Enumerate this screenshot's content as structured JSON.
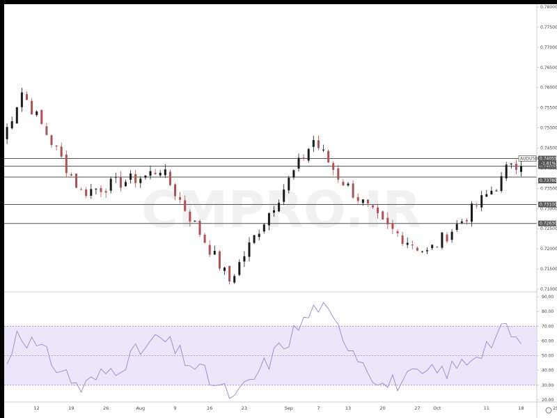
{
  "watermark": "CMPRO.IR",
  "colors": {
    "up": "#1a1a1a",
    "down": "#b05050",
    "level_line": "#555555",
    "rsi_line": "#9b7fd6",
    "rsi_band": "#ede6fa",
    "rsi_band_border": "#8a6cc8",
    "grid": "#e0e0e0"
  },
  "chart_data": [
    {
      "type": "candlestick",
      "symbol_badge": "AUDUSD",
      "last_price_label": "0.74055",
      "change_label": "-1.61%",
      "ylim": [
        0.71,
        0.78
      ],
      "y_ticks": [
        "0.78000",
        "0.77500",
        "0.77000",
        "0.76500",
        "0.76000",
        "0.75500",
        "0.75000",
        "0.74500",
        "0.74000",
        "0.73500",
        "0.73000",
        "0.72500",
        "0.72000",
        "0.71500",
        "0.71000"
      ],
      "x_ticks": [
        "12",
        "19",
        "26",
        "Aug",
        "9",
        "16",
        "23",
        "Sep",
        "7",
        "13",
        "20",
        "27",
        "Oct",
        "11",
        "18",
        "25"
      ],
      "horizontal_levels": [
        {
          "value": 0.7405,
          "label": "0.74050"
        },
        {
          "value": 0.7378,
          "label": "0.73780"
        },
        {
          "value": 0.731,
          "label": "0.73100"
        },
        {
          "value": 0.7263,
          "label": "0.72630"
        }
      ],
      "key_closes": [
        {
          "date": "Jul 05",
          "close": 0.747
        },
        {
          "date": "Jul 09",
          "close": 0.759
        },
        {
          "date": "Jul 21",
          "close": 0.734
        },
        {
          "date": "Aug 03",
          "close": 0.738
        },
        {
          "date": "Aug 06",
          "close": 0.74
        },
        {
          "date": "Aug 20",
          "close": 0.712
        },
        {
          "date": "Aug 26",
          "close": 0.725
        },
        {
          "date": "Sep 03",
          "close": 0.741
        },
        {
          "date": "Sep 06",
          "close": 0.747
        },
        {
          "date": "Sep 11",
          "close": 0.738
        },
        {
          "date": "Sep 20",
          "close": 0.726
        },
        {
          "date": "Sep 29",
          "close": 0.719
        },
        {
          "date": "Oct 06",
          "close": 0.727
        },
        {
          "date": "Oct 14",
          "close": 0.737
        },
        {
          "date": "Oct 16",
          "close": 0.742
        },
        {
          "date": "Oct 18",
          "close": 0.7405
        }
      ]
    },
    {
      "type": "line",
      "indicator": "RSI",
      "ylim": [
        20,
        90
      ],
      "y_ticks": [
        "90.00",
        "80.00",
        "70.00",
        "60.00",
        "50.00",
        "40.00",
        "30.00",
        "20.00"
      ],
      "upper_band": 70,
      "middle_band": 50,
      "lower_band": 30,
      "key_values": [
        {
          "date": "Jul 05",
          "value": 30
        },
        {
          "date": "Jul 08",
          "value": 68
        },
        {
          "date": "Jul 21",
          "value": 28
        },
        {
          "date": "Aug 06",
          "value": 62
        },
        {
          "date": "Aug 21",
          "value": 20
        },
        {
          "date": "Sep 07",
          "value": 85
        },
        {
          "date": "Sep 20",
          "value": 30
        },
        {
          "date": "Oct 05",
          "value": 42
        },
        {
          "date": "Oct 15",
          "value": 68
        },
        {
          "date": "Oct 18",
          "value": 58
        }
      ]
    }
  ]
}
